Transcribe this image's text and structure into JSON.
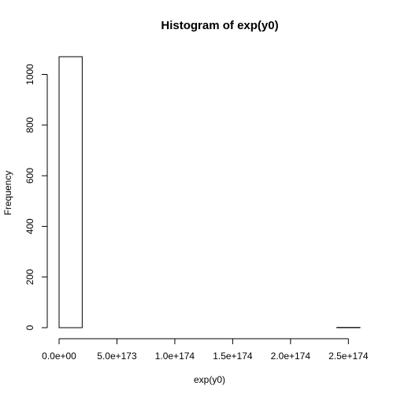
{
  "chart_data": {
    "type": "bar",
    "title": "Histogram of exp(y0)",
    "xlabel": "exp(y0)",
    "ylabel": "Frequency",
    "x_unit_exponent": 173,
    "x_ticks": [
      0,
      5,
      10,
      15,
      20,
      25
    ],
    "x_tick_labels": [
      "0.0e+00",
      "5.0e+173",
      "1.0e+174",
      "1.5e+174",
      "2.0e+174",
      "2.5e+174"
    ],
    "y_ticks": [
      0,
      200,
      400,
      600,
      800,
      1000
    ],
    "y_tick_labels": [
      "0",
      "200",
      "400",
      "600",
      "800",
      "1000"
    ],
    "bin_edges": [
      0,
      2,
      4,
      6,
      8,
      10,
      12,
      14,
      16,
      18,
      20,
      22,
      24,
      26
    ],
    "values": [
      1070,
      0,
      0,
      0,
      0,
      0,
      0,
      0,
      0,
      0,
      0,
      0,
      1
    ],
    "xlim": [
      0,
      26
    ],
    "ylim": [
      0,
      1070
    ],
    "grid": false,
    "legend": "none"
  }
}
